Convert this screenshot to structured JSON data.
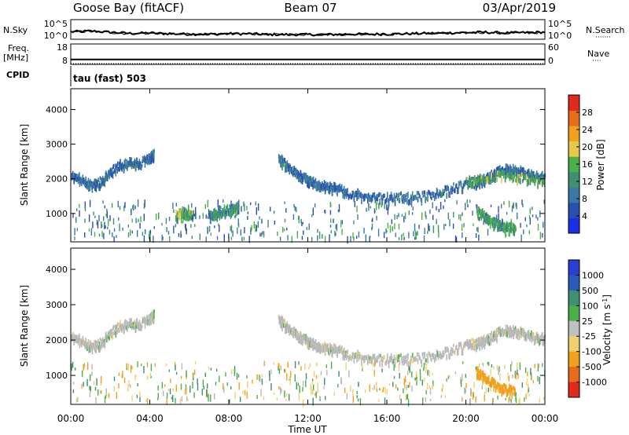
{
  "header": {
    "title": "Goose Bay (fitACF)",
    "beam": "Beam 07",
    "date": "03/Apr/2019"
  },
  "top_panel_labels": {
    "nsky": "N.Sky",
    "nsearch": "N.Search",
    "nsearch_dots": "·······",
    "freq": "Freq.",
    "freq_unit": "[MHz]",
    "nave": "Nave",
    "nave_dots": "····",
    "cpid": "CPID",
    "mode": "tau (fast) 503"
  },
  "colors": {
    "noise_line": "#000000",
    "power_scale": [
      "#1a2ee6",
      "#2a4fb0",
      "#3b78a8",
      "#3f8f70",
      "#4bb04a",
      "#e8c84a",
      "#f0a21e",
      "#e86a1a",
      "#e02a1a"
    ],
    "velocity_scale": [
      "#2a3fd0",
      "#2a5ab8",
      "#3f8f70",
      "#4bb04a",
      "#c0c0c0",
      "#f0d070",
      "#f0a21e",
      "#e86a1a",
      "#e02a1a"
    ],
    "echo_gray": "#b8b8b8"
  },
  "chart_data": [
    {
      "type": "line",
      "name": "noise",
      "x": [
        0,
        1,
        2,
        3,
        4,
        5,
        6,
        7,
        8,
        9,
        10,
        11,
        12,
        13,
        14,
        15,
        16,
        17,
        18,
        19,
        20,
        21,
        22,
        23,
        24
      ],
      "series": [
        {
          "name": "N.Sky",
          "values": [
            1.9,
            2.1,
            1.8,
            1.5,
            1.6,
            1.4,
            1.3,
            1.3,
            1.4,
            1.4,
            1.2,
            1.2,
            1.2,
            1.2,
            1.3,
            1.3,
            1.3,
            1.4,
            1.5,
            1.6,
            1.7,
            1.8,
            1.6,
            1.7,
            1.8
          ]
        },
        {
          "name": "N.Search",
          "values": [
            1.8,
            2.0,
            1.7,
            1.4,
            1.5,
            1.4,
            1.3,
            1.3,
            1.3,
            1.4,
            1.2,
            1.2,
            1.2,
            1.2,
            1.2,
            1.3,
            1.3,
            1.4,
            1.4,
            1.5,
            1.6,
            1.7,
            1.5,
            1.6,
            1.7
          ]
        }
      ],
      "yticks_left": [
        "10^5",
        "10^0"
      ],
      "yticks_right": [
        "10^5",
        "10^0"
      ],
      "xlim": [
        0,
        24
      ]
    },
    {
      "type": "line",
      "name": "frequency",
      "x": [
        0,
        24
      ],
      "series": [
        {
          "name": "Freq.",
          "values": [
            10.4,
            10.4
          ]
        },
        {
          "name": "Nave",
          "values": [
            0,
            0
          ]
        }
      ],
      "yticks_left": [
        "18",
        "8"
      ],
      "yticks_right": [
        "60",
        "0"
      ],
      "ylim_left": [
        8,
        18
      ],
      "ylim_right": [
        0,
        60
      ],
      "xlim": [
        0,
        24
      ]
    },
    {
      "type": "scatter",
      "name": "power",
      "ylabel": "Slant Range [km]",
      "yticks": [
        "4000",
        "3000",
        "2000",
        "1000"
      ],
      "ytick_values": [
        4000,
        3000,
        2000,
        1000
      ],
      "ylim": [
        180,
        4600
      ],
      "xlim": [
        0,
        24
      ],
      "colorbar": {
        "label": "Power [dB]",
        "ticks": [
          "28",
          "24",
          "20",
          "16",
          "12",
          "8",
          "4"
        ],
        "tick_values": [
          28,
          24,
          20,
          16,
          12,
          8,
          4
        ],
        "range": [
          0,
          32
        ]
      },
      "bands": [
        {
          "t": [
            0,
            0.5,
            1,
            1.5,
            2,
            2.5,
            3,
            3.5,
            4,
            4.2
          ],
          "r": [
            2050,
            2000,
            1800,
            1900,
            2200,
            2400,
            2450,
            2450,
            2600,
            2700
          ],
          "level": 8
        },
        {
          "t": [
            10.5,
            11,
            11.5,
            12,
            12.5,
            13,
            13.5,
            14,
            15,
            16,
            17,
            18,
            19,
            20,
            20.5,
            21,
            21.5,
            22,
            22.5,
            23,
            23.5,
            24
          ],
          "r": [
            2600,
            2350,
            2100,
            1950,
            1850,
            1750,
            1700,
            1600,
            1500,
            1450,
            1450,
            1500,
            1650,
            1850,
            1900,
            2000,
            2150,
            2300,
            2250,
            2150,
            2050,
            2050
          ],
          "level": 8
        },
        {
          "t": [
            20,
            21,
            22,
            23,
            24
          ],
          "r": [
            1900,
            2000,
            2100,
            2000,
            1900
          ],
          "level": 15
        },
        {
          "t": [
            5.3,
            5.8,
            6.2
          ],
          "r": [
            950,
            1000,
            900
          ],
          "level": 16
        },
        {
          "t": [
            7,
            7.5,
            8,
            8.5
          ],
          "r": [
            900,
            1050,
            1100,
            1200
          ],
          "level": 12
        },
        {
          "t": [
            20.5,
            21,
            21.5,
            22,
            22.5
          ],
          "r": [
            1100,
            900,
            700,
            600,
            550
          ],
          "level": 14
        }
      ]
    },
    {
      "type": "scatter",
      "name": "velocity",
      "ylabel": "Slant Range [km]",
      "yticks": [
        "4000",
        "3000",
        "2000",
        "1000"
      ],
      "ytick_values": [
        4000,
        3000,
        2000,
        1000
      ],
      "ylim": [
        180,
        4600
      ],
      "xlim": [
        0,
        24
      ],
      "colorbar": {
        "label": "Velocity [m s-1]",
        "label_parts": [
          "Velocity [m s",
          "-1",
          "]"
        ],
        "ticks": [
          "1000",
          "500",
          "100",
          "25",
          "-25",
          "-100",
          "-500",
          "-1000"
        ],
        "tick_values": [
          1000,
          500,
          100,
          25,
          -25,
          -100,
          -500,
          -1000
        ]
      },
      "bands": [
        {
          "t": [
            0,
            0.5,
            1,
            1.5,
            2,
            2.5,
            3,
            3.5,
            4,
            4.2
          ],
          "r": [
            2050,
            2000,
            1800,
            1900,
            2200,
            2400,
            2450,
            2450,
            2600,
            2700
          ],
          "level": 0
        },
        {
          "t": [
            10.5,
            11,
            11.5,
            12,
            12.5,
            13,
            13.5,
            14,
            15,
            16,
            17,
            18,
            19,
            20,
            20.5,
            21,
            21.5,
            22,
            22.5,
            23,
            23.5,
            24
          ],
          "r": [
            2600,
            2350,
            2100,
            1950,
            1850,
            1750,
            1700,
            1600,
            1500,
            1450,
            1450,
            1500,
            1650,
            1850,
            1900,
            2000,
            2150,
            2300,
            2250,
            2150,
            2050,
            2050
          ],
          "level": 0
        },
        {
          "t": [
            20.5,
            21,
            21.5,
            22,
            22.5
          ],
          "r": [
            1100,
            900,
            700,
            600,
            550
          ],
          "level": -150
        }
      ],
      "xlabel": "Time UT",
      "xticks": [
        "00:00",
        "04:00",
        "08:00",
        "12:00",
        "16:00",
        "20:00",
        "00:00"
      ],
      "xtick_values": [
        0,
        4,
        8,
        12,
        16,
        20,
        24
      ]
    }
  ]
}
